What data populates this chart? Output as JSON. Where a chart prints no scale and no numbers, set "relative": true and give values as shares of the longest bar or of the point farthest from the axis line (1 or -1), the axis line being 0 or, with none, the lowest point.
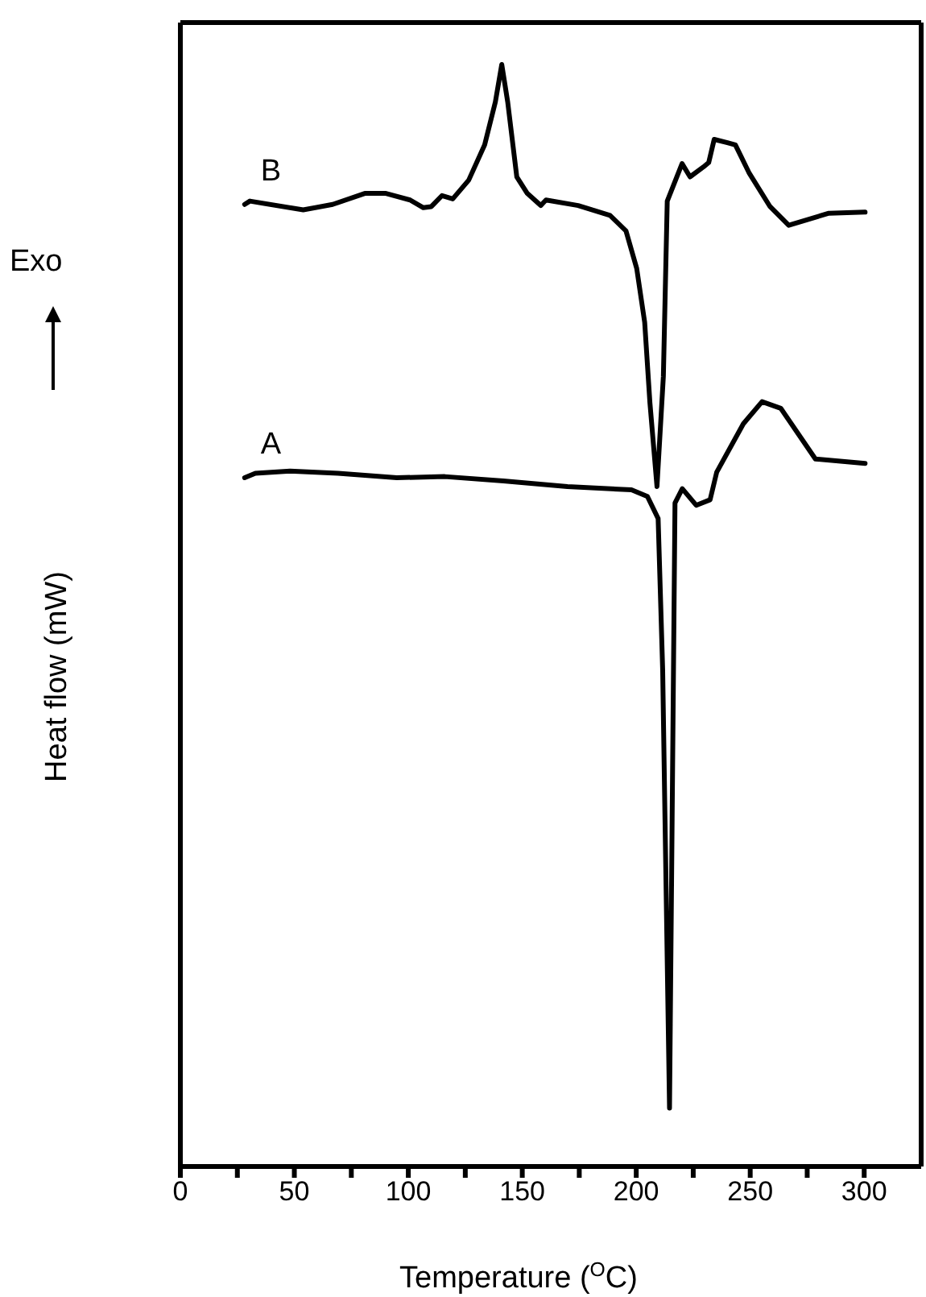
{
  "chart_data": {
    "type": "line",
    "relative": true,
    "xlabel": "Temperature ($^{O}$C)",
    "ylabel": "Heat flow (mW)",
    "annotations": [
      "Exo"
    ],
    "xlim": [
      0,
      325
    ],
    "xticks": [
      0,
      {
        "value": 25,
        "label": null
      },
      50,
      {
        "value": 75,
        "label": null
      },
      100,
      {
        "value": 125,
        "label": null
      },
      150,
      {
        "value": 175,
        "label": null
      },
      200,
      {
        "value": 225,
        "label": null
      },
      250,
      {
        "value": 275,
        "label": null
      },
      300
    ],
    "marker": "none",
    "line_style": "solid",
    "tick_labels": "x",
    "series": [
      {
        "name": "B",
        "color": "#000000",
        "x": [
          28.2,
          30.5,
          53.9,
          66.8,
          80.9,
          90.2,
          100.8,
          106.6,
          110.1,
          114.8,
          119.5,
          126.5,
          133.5,
          138.2,
          141.0,
          143.6,
          147.6,
          152.2,
          158.1,
          160.4,
          174.5,
          188.5,
          195.5,
          200.2,
          203.7,
          206.0,
          209.1,
          211.9,
          213.6,
          220.1,
          223.6,
          229.5,
          231.8,
          234.2,
          240.0,
          243.5,
          249.4,
          258.7,
          266.9,
          284.5,
          300.4
        ],
        "values": [
          0.873,
          0.876,
          0.868,
          0.873,
          0.883,
          0.883,
          0.877,
          0.87,
          0.871,
          0.881,
          0.878,
          0.895,
          0.927,
          0.966,
          1.0,
          0.966,
          0.898,
          0.883,
          0.872,
          0.877,
          0.872,
          0.863,
          0.849,
          0.815,
          0.766,
          0.693,
          0.617,
          0.717,
          0.876,
          0.91,
          0.898,
          0.907,
          0.911,
          0.932,
          0.929,
          0.927,
          0.902,
          0.871,
          0.854,
          0.865,
          0.866
        ]
      },
      {
        "name": "A",
        "color": "#000000",
        "x": [
          28.2,
          32.9,
          48.1,
          69.2,
          94.9,
          116.0,
          141.7,
          169.8,
          197.9,
          204.9,
          209.6,
          211.6,
          214.6,
          217.0,
          220.2,
          226.3,
          232.4,
          235.3,
          247.0,
          255.2,
          263.4,
          278.6,
          300.4
        ],
        "values": [
          0.625,
          0.629,
          0.631,
          0.629,
          0.625,
          0.626,
          0.622,
          0.617,
          0.614,
          0.608,
          0.588,
          0.45,
          0.053,
          0.602,
          0.615,
          0.6,
          0.605,
          0.63,
          0.674,
          0.694,
          0.688,
          0.642,
          0.638
        ]
      }
    ]
  }
}
